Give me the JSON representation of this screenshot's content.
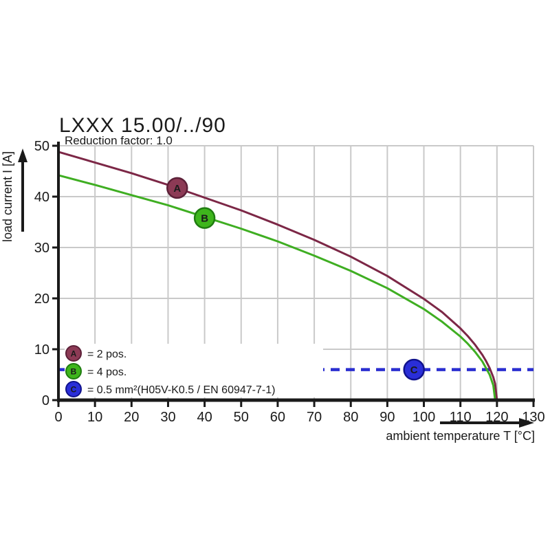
{
  "title": "LXXX 15.00/../90",
  "subtitle": "Reduction factor: 1.0",
  "axes": {
    "x": {
      "label": "ambient temperature T [°C]",
      "ticks": [
        0,
        10,
        20,
        30,
        40,
        50,
        60,
        70,
        80,
        90,
        100,
        110,
        120,
        130
      ]
    },
    "y": {
      "label": "load current I [A]",
      "ticks": [
        0,
        10,
        20,
        30,
        40,
        50
      ]
    }
  },
  "colors": {
    "grid": "#c9c9c9",
    "axis": "#1a1a1a",
    "curve_a": "#7c2746",
    "curve_b": "#3fae22",
    "line_c": "#2a2ed0",
    "marker_a_fill": "#8c3a55",
    "marker_a_stroke": "#5c2038",
    "marker_b_fill": "#3eb51c",
    "marker_b_stroke": "#1f7c10",
    "marker_c_fill": "#2a2ed8",
    "marker_c_stroke": "#10128c"
  },
  "legend": [
    {
      "id": "A",
      "label": "= 2 pos."
    },
    {
      "id": "B",
      "label": "= 4 pos."
    },
    {
      "id": "C",
      "label": "= 0.5 mm²(H05V-K0.5 / EN 60947-7-1)"
    }
  ],
  "chart_data": {
    "type": "line",
    "title": "LXXX 15.00/../90",
    "subtitle": "Reduction factor: 1.0",
    "xlabel": "ambient temperature T [°C]",
    "ylabel": "load current I [A]",
    "xlim": [
      0,
      130
    ],
    "ylim": [
      0,
      50
    ],
    "grid": true,
    "legend_position": "lower-left",
    "series": [
      {
        "name": "A = 2 pos.",
        "style": "solid",
        "color_key": "curve_a",
        "marker": {
          "letter": "A",
          "x": 32.5,
          "y": 41.7
        },
        "points": [
          [
            0,
            48.8
          ],
          [
            10,
            46.7
          ],
          [
            20,
            44.6
          ],
          [
            30,
            42.3
          ],
          [
            40,
            39.8
          ],
          [
            50,
            37.3
          ],
          [
            60,
            34.5
          ],
          [
            70,
            31.5
          ],
          [
            80,
            28.2
          ],
          [
            90,
            24.4
          ],
          [
            100,
            19.9
          ],
          [
            105,
            17.3
          ],
          [
            110,
            14.1
          ],
          [
            112,
            12.6
          ],
          [
            114,
            10.9
          ],
          [
            116,
            8.9
          ],
          [
            117,
            7.7
          ],
          [
            118,
            6.3
          ],
          [
            119,
            4.5
          ],
          [
            119.5,
            3.2
          ],
          [
            120,
            0
          ]
        ]
      },
      {
        "name": "B = 4 pos.",
        "style": "solid",
        "color_key": "curve_b",
        "marker": {
          "letter": "B",
          "x": 40,
          "y": 35.8
        },
        "points": [
          [
            0,
            44.2
          ],
          [
            10,
            42.3
          ],
          [
            20,
            40.3
          ],
          [
            30,
            38.3
          ],
          [
            40,
            36.0
          ],
          [
            50,
            33.7
          ],
          [
            60,
            31.2
          ],
          [
            70,
            28.4
          ],
          [
            80,
            25.4
          ],
          [
            90,
            22.0
          ],
          [
            100,
            17.9
          ],
          [
            105,
            15.4
          ],
          [
            110,
            12.5
          ],
          [
            112,
            11.1
          ],
          [
            114,
            9.5
          ],
          [
            116,
            7.6
          ],
          [
            118,
            5.0
          ],
          [
            119,
            2.9
          ],
          [
            119.5,
            0
          ]
        ]
      },
      {
        "name": "C = 0.5 mm²(H05V-K0.5 / EN 60947-7-1)",
        "style": "dashed",
        "color_key": "line_c",
        "marker": {
          "letter": "C",
          "x": 97.3,
          "y": 6
        },
        "points": [
          [
            0,
            6
          ],
          [
            130,
            6
          ]
        ]
      }
    ]
  }
}
